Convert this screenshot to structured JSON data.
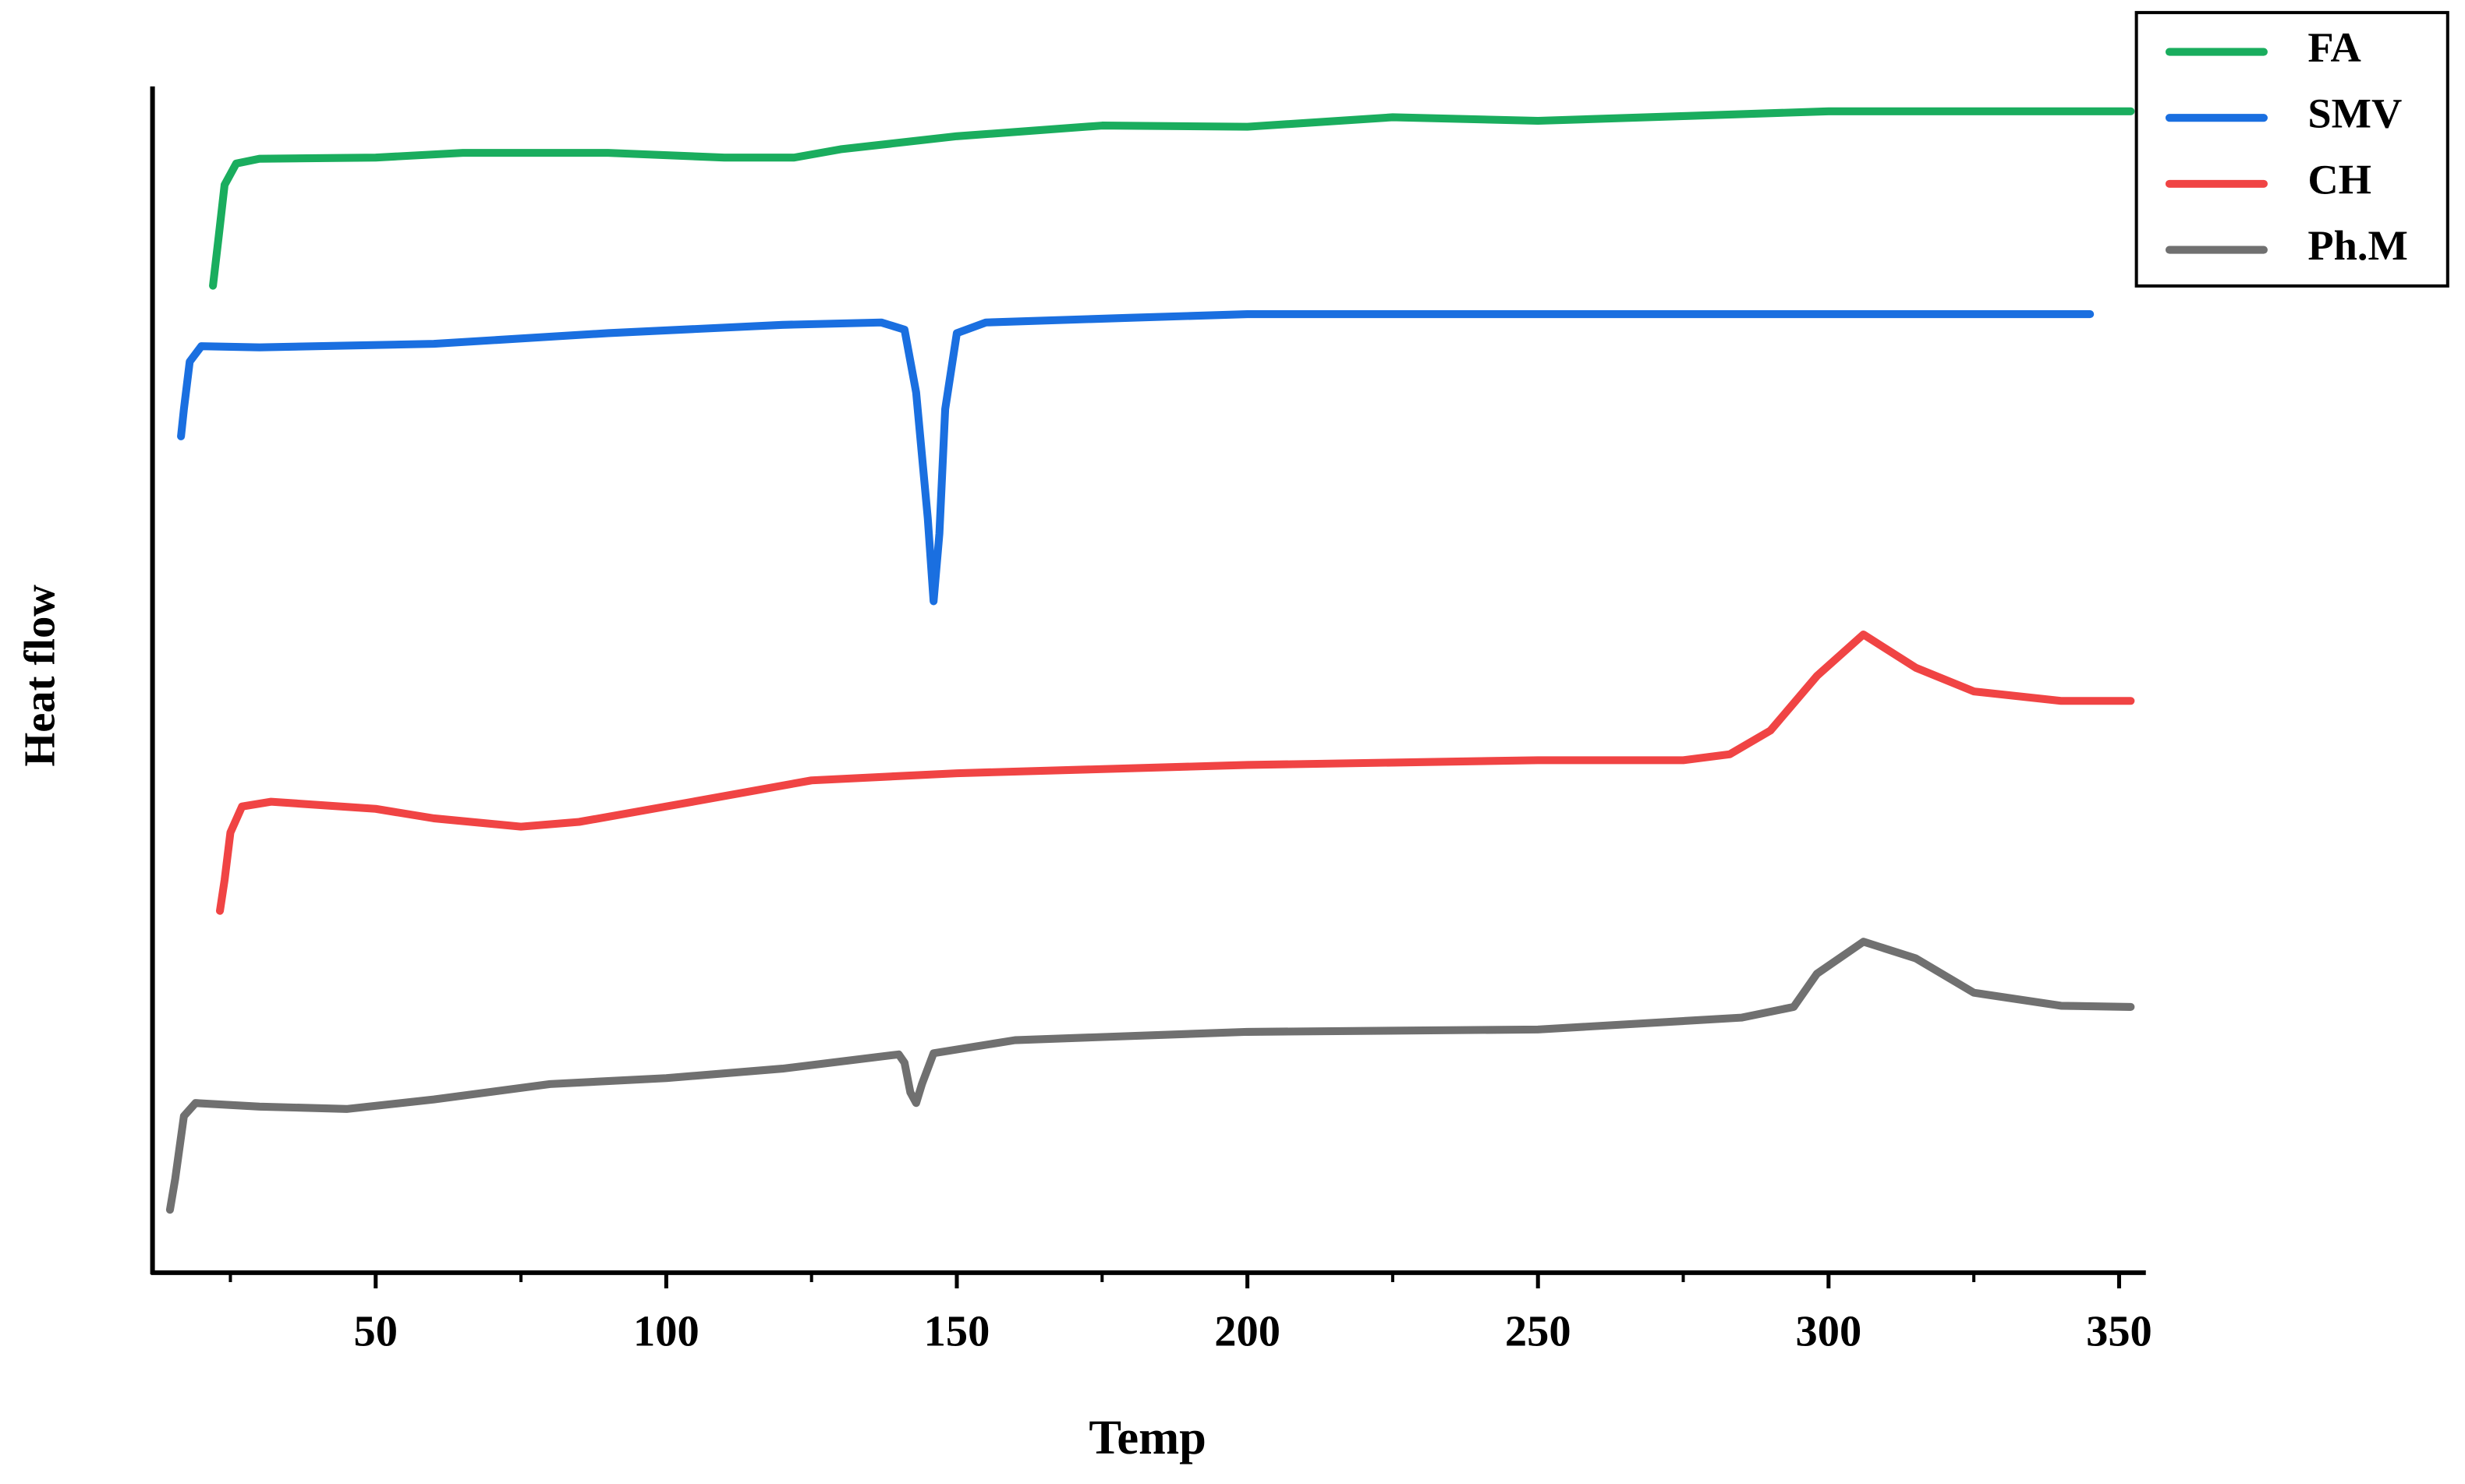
{
  "chart_data": {
    "type": "line",
    "xlabel": "Temp",
    "ylabel": "Heat flow",
    "xlim": [
      11.6,
      354.6
    ],
    "xticks": [
      50,
      100,
      150,
      200,
      250,
      300,
      350
    ],
    "xminorticks": [
      25,
      75,
      125,
      175,
      225,
      275,
      325
    ],
    "ylim": [
      0,
      100
    ],
    "legend": "upper right",
    "series": [
      {
        "name": "FA",
        "color": "#1aad5e",
        "x": [
          22,
          23,
          24,
          26,
          30,
          50,
          65,
          90,
          110,
          122,
          130,
          150,
          175,
          200,
          225,
          250,
          275,
          300,
          352
        ],
        "values": [
          83.2,
          87.4,
          91.7,
          93.5,
          93.9,
          94.0,
          94.4,
          94.4,
          94.0,
          94.0,
          94.7,
          95.8,
          96.7,
          96.6,
          97.4,
          97.1,
          97.5,
          97.9,
          97.9
        ]
      },
      {
        "name": "SMV",
        "color": "#1a6fe0",
        "x": [
          16.5,
          17,
          18,
          20,
          30,
          60,
          90,
          120,
          137,
          141,
          143,
          145,
          146,
          147,
          148,
          150,
          155,
          180,
          200,
          345
        ],
        "values": [
          70.5,
          72.8,
          76.8,
          78.1,
          78.0,
          78.3,
          79.2,
          79.9,
          80.1,
          79.5,
          74.2,
          63.6,
          56.6,
          62.3,
          72.8,
          79.2,
          80.1,
          80.5,
          80.8,
          80.8
        ]
      },
      {
        "name": "CH",
        "color": "#f04444",
        "x": [
          23.2,
          24,
          25,
          27,
          32,
          50,
          60,
          75,
          85,
          100,
          125,
          150,
          200,
          250,
          275,
          283,
          290,
          298,
          306,
          315,
          325,
          340,
          352
        ],
        "values": [
          30.5,
          33.1,
          37.1,
          39.3,
          39.7,
          39.1,
          38.3,
          37.6,
          38.0,
          39.3,
          41.5,
          42.1,
          42.8,
          43.2,
          43.2,
          43.7,
          45.7,
          50.3,
          53.8,
          51.0,
          49.0,
          48.2,
          48.2
        ]
      },
      {
        "name": "Ph.M",
        "color": "#707070",
        "x": [
          14.6,
          15.5,
          17,
          19,
          30,
          45,
          60,
          80,
          100,
          120,
          140,
          141,
          142,
          143,
          144,
          146,
          160,
          200,
          250,
          285,
          294,
          298,
          306,
          315,
          325,
          340,
          352
        ],
        "values": [
          5.3,
          7.9,
          13.2,
          14.3,
          14.0,
          13.8,
          14.6,
          15.9,
          16.4,
          17.2,
          18.4,
          17.7,
          15.2,
          14.3,
          15.9,
          18.5,
          19.6,
          20.3,
          20.5,
          21.5,
          22.4,
          25.2,
          27.9,
          26.5,
          23.6,
          22.5,
          22.4
        ]
      }
    ]
  }
}
